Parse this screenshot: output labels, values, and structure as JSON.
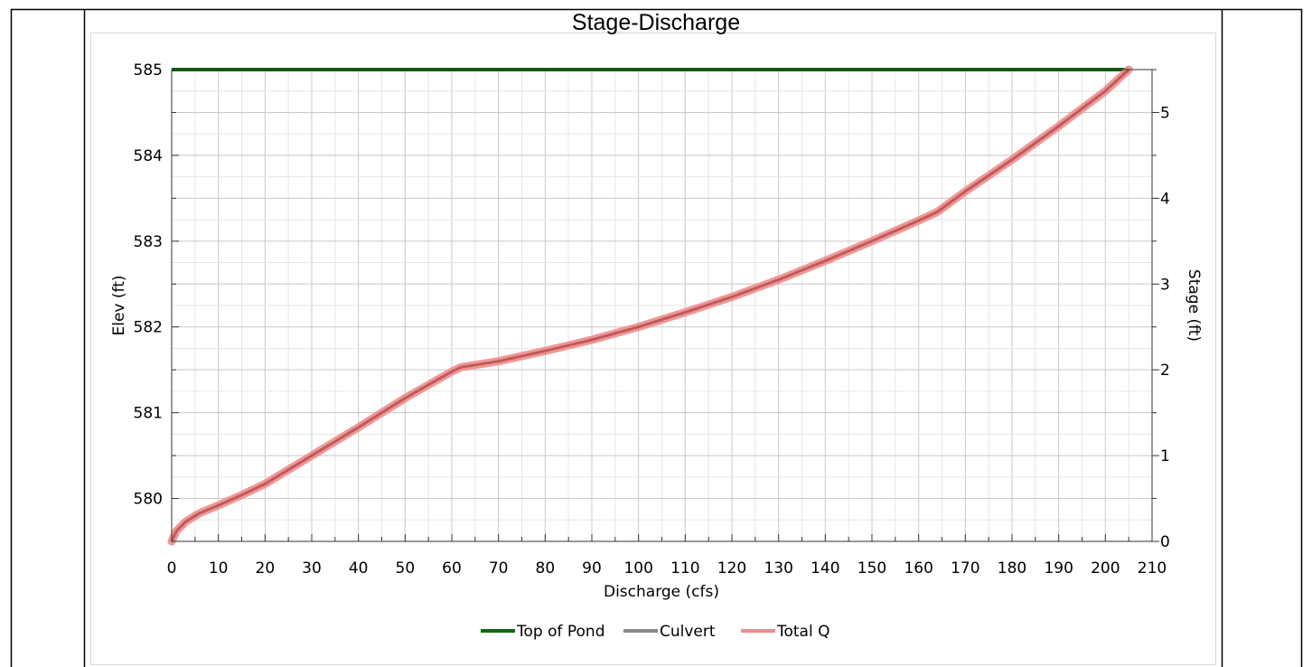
{
  "chart_data": {
    "type": "line",
    "title": "Stage-Discharge",
    "xlabel": "Discharge (cfs)",
    "ylabel": "Elev (ft)",
    "y2label": "Stage (ft)",
    "xlim": [
      0,
      210
    ],
    "ylim": [
      579.5,
      585
    ],
    "y2lim": [
      0,
      5.5
    ],
    "xticks": [
      "0",
      "10",
      "20",
      "30",
      "40",
      "50",
      "60",
      "70",
      "80",
      "90",
      "100",
      "110",
      "120",
      "130",
      "140",
      "150",
      "160",
      "170",
      "180",
      "190",
      "200",
      "210"
    ],
    "yticks": [
      "580",
      "581",
      "582",
      "583",
      "584",
      "585"
    ],
    "y2ticks": [
      "0",
      "1",
      "2",
      "3",
      "4",
      "5"
    ],
    "grid": true,
    "legend_position": "bottom-center",
    "series": [
      {
        "name": "Top of Pond",
        "color": "#0a6a0a",
        "x": [
          0,
          205
        ],
        "y": [
          585,
          585
        ]
      },
      {
        "name": "Culvert",
        "color": "#8a8a8a",
        "x": [
          0,
          1,
          3,
          6,
          10,
          15,
          20,
          30,
          40,
          50,
          60,
          62,
          70,
          80,
          90,
          100,
          110,
          120,
          130,
          140,
          150,
          160,
          164,
          170,
          180,
          190,
          200,
          205
        ],
        "y": [
          579.5,
          579.62,
          579.73,
          579.83,
          579.92,
          580.04,
          580.17,
          580.5,
          580.83,
          581.17,
          581.48,
          581.53,
          581.6,
          581.72,
          581.85,
          582.0,
          582.17,
          582.35,
          582.55,
          582.77,
          583.0,
          583.24,
          583.34,
          583.58,
          583.95,
          584.34,
          584.75,
          585.0
        ]
      },
      {
        "name": "Total Q",
        "color": "#f08c8c",
        "x": [
          0,
          1,
          3,
          6,
          10,
          15,
          20,
          30,
          40,
          50,
          60,
          62,
          70,
          80,
          90,
          100,
          110,
          120,
          130,
          140,
          150,
          160,
          164,
          170,
          180,
          190,
          200,
          205
        ],
        "y": [
          579.5,
          579.62,
          579.73,
          579.83,
          579.92,
          580.04,
          580.17,
          580.5,
          580.83,
          581.17,
          581.48,
          581.53,
          581.6,
          581.72,
          581.85,
          582.0,
          582.17,
          582.35,
          582.55,
          582.77,
          583.0,
          583.24,
          583.34,
          583.58,
          583.95,
          584.34,
          584.75,
          585.0
        ]
      }
    ]
  }
}
